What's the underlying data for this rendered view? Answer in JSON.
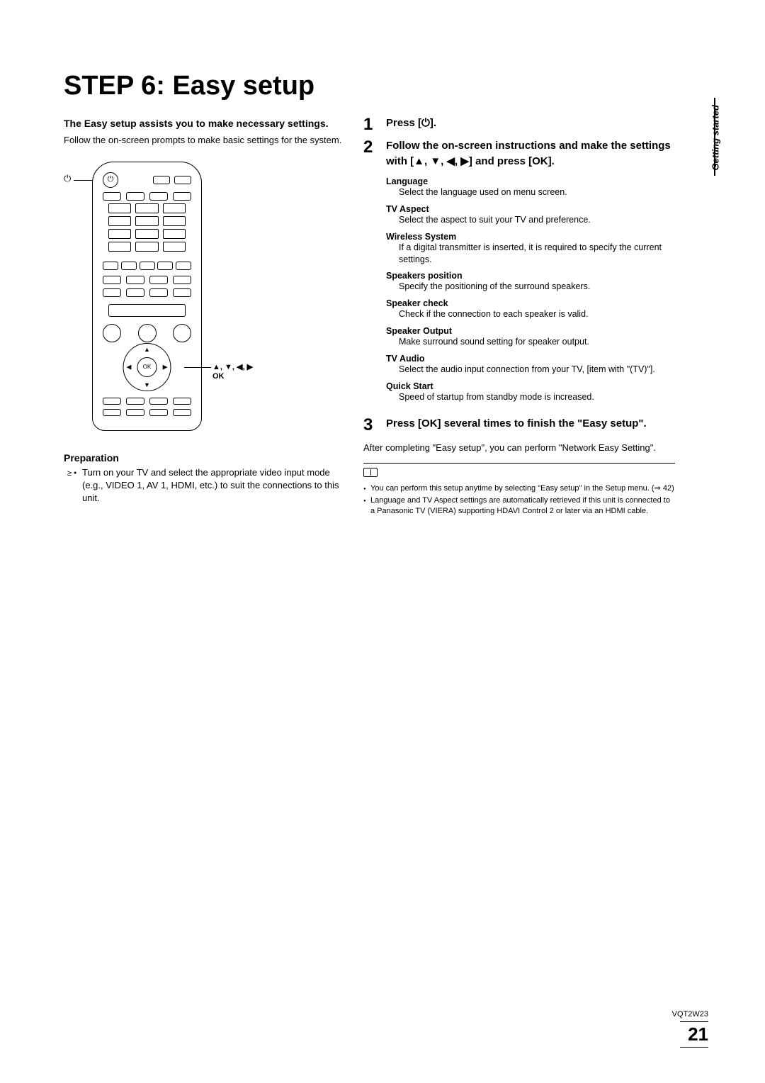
{
  "title": "STEP 6: Easy setup",
  "intro_bold": "The Easy setup assists you to make necessary settings.",
  "intro_text": "Follow the on-screen prompts to make basic settings for the system.",
  "remote": {
    "power_symbol": "⏻",
    "ok_label": "OK",
    "callout_arrows": "▲, ▼, ◀, ▶",
    "callout_ok": "OK"
  },
  "preparation": {
    "heading": "Preparation",
    "item": "Turn on your TV and select the appropriate video input mode (e.g., VIDEO 1, AV 1, HDMI, etc.) to suit the connections to this unit."
  },
  "steps": {
    "s1": {
      "num": "1",
      "text": "Press [⏻]."
    },
    "s2": {
      "num": "2",
      "text": "Follow the on-screen instructions and make the settings with [▲, ▼, ◀, ▶] and press [OK]."
    },
    "s3": {
      "num": "3",
      "text": "Press [OK] several times to finish the \"Easy setup\"."
    }
  },
  "settings": [
    {
      "title": "Language",
      "text": "Select the language used on menu screen."
    },
    {
      "title": "TV Aspect",
      "text": "Select the aspect to suit your TV and preference."
    },
    {
      "title": "Wireless System",
      "text": "If a digital transmitter is inserted,\nit is required to specify the current settings."
    },
    {
      "title": "Speakers position",
      "text": "Specify the positioning of the surround speakers."
    },
    {
      "title": "Speaker check",
      "text": "Check if the connection to each speaker is valid."
    },
    {
      "title": "Speaker Output",
      "text": "Make surround sound setting for speaker output."
    },
    {
      "title": "TV Audio",
      "text": "Select the audio input connection from your TV, [item with \"(TV)\"]."
    },
    {
      "title": "Quick Start",
      "text": "Speed of startup from standby mode is increased."
    }
  ],
  "after_text": "After completing \"Easy setup\", you can perform \"Network Easy Setting\".",
  "notes": [
    "You can perform this setup anytime by selecting \"Easy setup\" in the Setup menu. (⇒ 42)",
    "Language and TV Aspect settings are automatically retrieved if this unit is connected to a Panasonic TV (VIERA) supporting HDAVI Control 2 or later via an HDMI cable."
  ],
  "side_tab": "Getting started",
  "doc_code": "VQT2W23",
  "page_number": "21"
}
